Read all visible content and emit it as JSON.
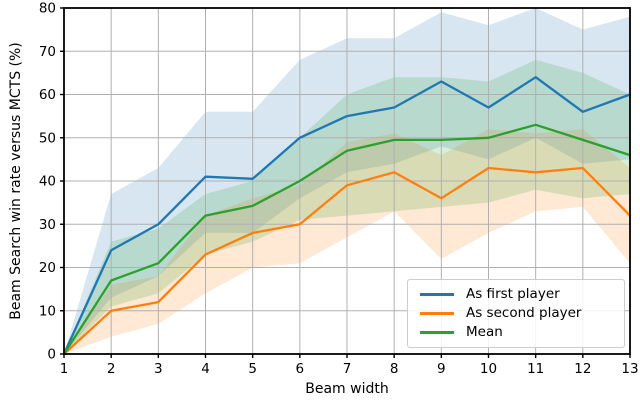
{
  "figure": {
    "xlabel": "Beam width",
    "ylabel": "Beam Search win rate versus MCTS (%)"
  },
  "chart_data": {
    "type": "line",
    "title": "",
    "xlabel": "Beam width",
    "ylabel": "Beam Search win rate versus MCTS (%)",
    "x": [
      1,
      2,
      3,
      4,
      5,
      6,
      7,
      8,
      9,
      10,
      11,
      12,
      13
    ],
    "xlim": [
      1,
      13
    ],
    "ylim": [
      0,
      80
    ],
    "xticks": [
      1,
      2,
      3,
      4,
      5,
      6,
      7,
      8,
      9,
      10,
      11,
      12,
      13
    ],
    "yticks": [
      0,
      10,
      20,
      30,
      40,
      50,
      60,
      70,
      80
    ],
    "grid": true,
    "grid_color": "#b0b0b0",
    "axis_color": "#000000",
    "band_opacity": 0.18,
    "legend_position": "lower right",
    "series": [
      {
        "name": "As first player",
        "color": "#1f77b4",
        "values": [
          0,
          24,
          30,
          41,
          40.5,
          50,
          55,
          57,
          63,
          57,
          64,
          56,
          60
        ],
        "band_lower": [
          0,
          13,
          18,
          28,
          28,
          36,
          42,
          44,
          48,
          45,
          50,
          44,
          45
        ],
        "band_upper": [
          0,
          37,
          43,
          56,
          56,
          68,
          73,
          73,
          79,
          76,
          80,
          75,
          78
        ]
      },
      {
        "name": "As second player",
        "color": "#ff7f0e",
        "values": [
          0,
          10,
          12,
          23,
          28,
          30,
          39,
          42,
          36,
          43,
          42,
          43,
          32
        ],
        "band_lower": [
          0,
          4,
          7,
          14,
          20,
          21,
          27,
          33,
          22,
          28,
          33,
          34,
          21
        ],
        "band_upper": [
          0,
          16,
          18,
          32,
          36,
          39,
          49,
          51,
          46,
          52,
          51,
          52,
          43
        ]
      },
      {
        "name": "Mean",
        "color": "#2ca02c",
        "values": [
          0,
          17,
          21,
          32,
          34.25,
          40,
          47,
          49.5,
          49.5,
          50,
          53,
          49.5,
          46
        ],
        "band_lower": [
          0,
          11,
          14,
          23,
          26,
          31,
          32,
          33,
          34,
          35,
          38,
          36,
          37
        ],
        "band_upper": [
          0,
          26,
          29,
          37,
          40,
          50,
          60,
          64,
          64,
          63,
          68,
          65,
          60
        ]
      }
    ]
  }
}
